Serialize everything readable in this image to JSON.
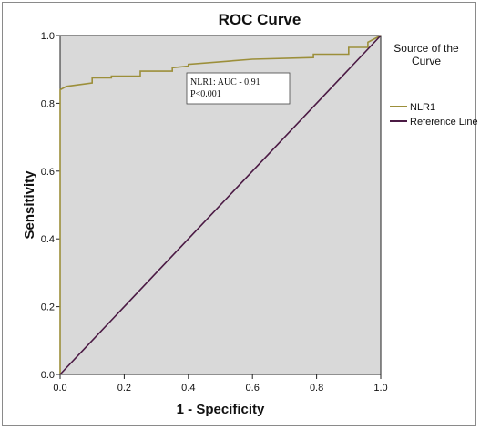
{
  "chart_data": {
    "type": "line",
    "title": "ROC Curve",
    "xlabel": "1 - Specificity",
    "ylabel": "Sensitivity",
    "xlim": [
      0,
      1
    ],
    "ylim": [
      0,
      1
    ],
    "xticks": [
      "0.0",
      "0.2",
      "0.4",
      "0.6",
      "0.8",
      "1.0"
    ],
    "yticks": [
      "0.0",
      "0.2",
      "0.4",
      "0.6",
      "0.8",
      "1.0"
    ],
    "grid": false,
    "legend": {
      "title": "Source of the Curve",
      "title_lines": [
        "Source of the",
        "Curve"
      ],
      "placement": "right"
    },
    "series": [
      {
        "name": "NLR1",
        "color": "#9c8f3a",
        "x": [
          0.0,
          0.0,
          0.02,
          0.1,
          0.1,
          0.16,
          0.16,
          0.25,
          0.25,
          0.35,
          0.35,
          0.4,
          0.4,
          0.6,
          0.6,
          0.79,
          0.79,
          0.9,
          0.9,
          0.96,
          0.96,
          1.0
        ],
        "y": [
          0.0,
          0.84,
          0.85,
          0.86,
          0.875,
          0.875,
          0.88,
          0.88,
          0.895,
          0.895,
          0.905,
          0.91,
          0.915,
          0.93,
          0.93,
          0.935,
          0.945,
          0.945,
          0.965,
          0.965,
          0.98,
          1.0
        ]
      },
      {
        "name": "Reference Line",
        "color": "#4b1a44",
        "x": [
          0,
          1
        ],
        "y": [
          0,
          1
        ]
      }
    ],
    "annotations": [
      "NLR1: AUC - 0.91",
      "P<0.001"
    ],
    "colors": {
      "plot_background": "#d9d9d9",
      "nlr1": "#9c8f3a",
      "reference": "#4b1a44"
    }
  }
}
